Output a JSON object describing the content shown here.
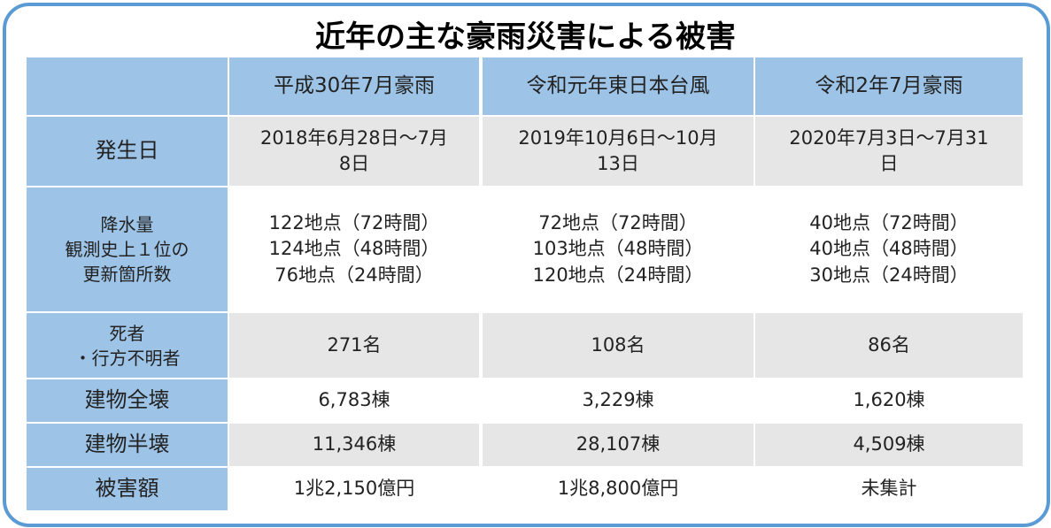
{
  "title": "近年の主な豪雨災害による被害",
  "table": {
    "columns": [
      "平成30年7月豪雨",
      "令和元年東日本台風",
      "令和2年7月豪雨"
    ],
    "rows": [
      {
        "label": [
          "発生日"
        ],
        "cells": [
          [
            "2018年6月28日～7月",
            "8日"
          ],
          [
            "2019年10月6日～10月",
            "13日"
          ],
          [
            "2020年7月3日～7月31",
            "日"
          ]
        ]
      },
      {
        "label": [
          "降水量",
          "観測史上１位の",
          "更新箇所数"
        ],
        "cells": [
          [
            "122地点（72時間）",
            "124地点（48時間）",
            "76地点（24時間）"
          ],
          [
            "72地点（72時間）",
            "103地点（48時間）",
            "120地点（24時間）"
          ],
          [
            "40地点（72時間）",
            "40地点（48時間）",
            "30地点（24時間）"
          ]
        ]
      },
      {
        "label": [
          "死者",
          "・行方不明者"
        ],
        "cells": [
          [
            "271名"
          ],
          [
            "108名"
          ],
          [
            "86名"
          ]
        ]
      },
      {
        "label": [
          "建物全壊"
        ],
        "cells": [
          [
            "6,783棟"
          ],
          [
            "3,229棟"
          ],
          [
            "1,620棟"
          ]
        ]
      },
      {
        "label": [
          "建物半壊"
        ],
        "cells": [
          [
            "11,346棟"
          ],
          [
            "28,107棟"
          ],
          [
            "4,509棟"
          ]
        ]
      },
      {
        "label": [
          "被害額"
        ],
        "cells": [
          [
            "1兆2,150億円"
          ],
          [
            "1兆8,800億円"
          ],
          [
            "未集計"
          ]
        ]
      }
    ]
  }
}
